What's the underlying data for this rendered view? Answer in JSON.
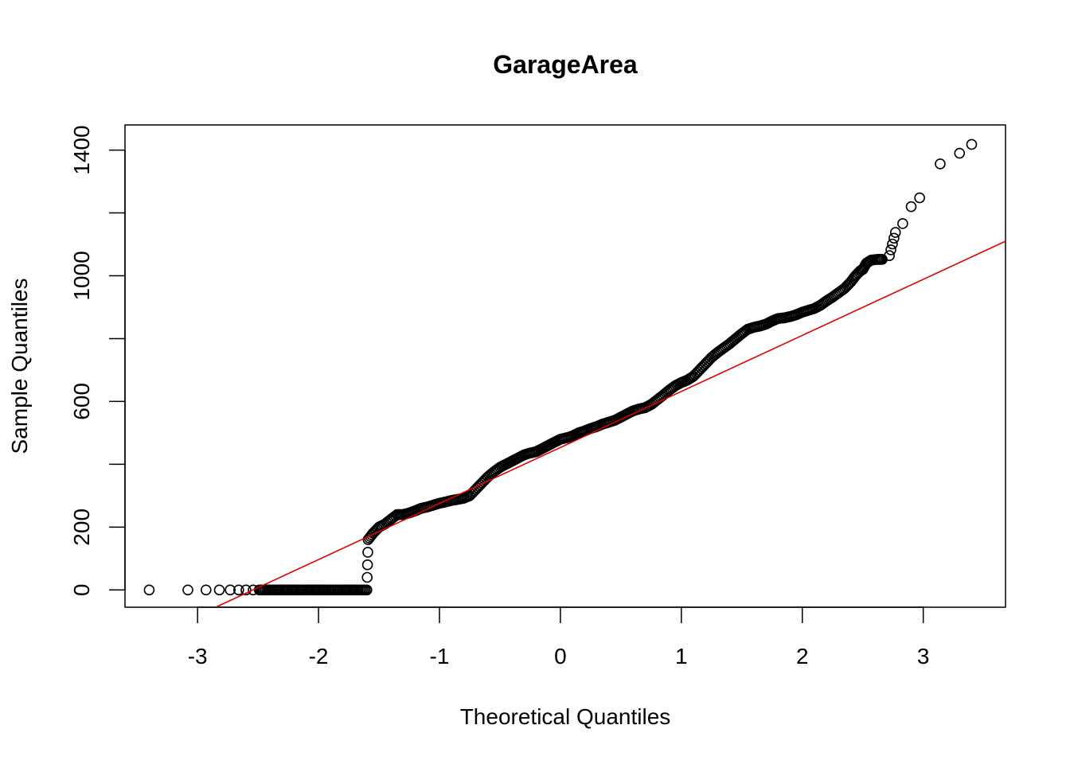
{
  "chart_data": {
    "type": "scatter",
    "title": "GarageArea",
    "xlabel": "Theoretical Quantiles",
    "ylabel": "Sample Quantiles",
    "xlim": [
      -3.6,
      3.68
    ],
    "ylim": [
      -55,
      1480
    ],
    "x_ticks": [
      -3,
      -2,
      -1,
      0,
      1,
      2,
      3
    ],
    "x_tick_labels": [
      "-3",
      "-2",
      "-1",
      "0",
      "1",
      "2",
      "3"
    ],
    "y_ticks": [
      0,
      200,
      400,
      600,
      800,
      1000,
      1200,
      1400
    ],
    "y_tick_labels": [
      "0",
      "200",
      "",
      "600",
      "",
      "1000",
      "",
      "1400"
    ],
    "grid": false,
    "point_style": "open-circle",
    "colors": {
      "points": "#000000",
      "line": "#e00000",
      "frame": "#000000"
    },
    "reference_line": {
      "x": [
        -2.85,
        3.68
      ],
      "y": [
        -55,
        1110
      ]
    },
    "series": [
      {
        "values": [
          {
            "x": -3.4,
            "y": 0
          },
          {
            "x": -3.08,
            "y": 0
          },
          {
            "x": -2.93,
            "y": 0
          },
          {
            "x": -2.82,
            "y": 0
          },
          {
            "x": -2.73,
            "y": 0
          },
          {
            "x": -2.66,
            "y": 0
          },
          {
            "x": -2.6,
            "y": 0
          },
          {
            "x": -2.54,
            "y": 0
          },
          {
            "x": -2.49,
            "y": 0
          },
          {
            "x": -2.45,
            "y": 0
          },
          {
            "x": -2.4,
            "y": 0
          },
          {
            "x": -2.35,
            "y": 0
          },
          {
            "x": -2.3,
            "y": 0
          },
          {
            "x": -2.25,
            "y": 0
          },
          {
            "x": -2.2,
            "y": 0
          },
          {
            "x": -2.15,
            "y": 0
          },
          {
            "x": -2.1,
            "y": 0
          },
          {
            "x": -2.05,
            "y": 0
          },
          {
            "x": -2.0,
            "y": 0
          },
          {
            "x": -1.95,
            "y": 0
          },
          {
            "x": -1.9,
            "y": 0
          },
          {
            "x": -1.85,
            "y": 0
          },
          {
            "x": -1.8,
            "y": 0
          },
          {
            "x": -1.75,
            "y": 0
          },
          {
            "x": -1.7,
            "y": 0
          },
          {
            "x": -1.65,
            "y": 0
          },
          {
            "x": -1.6,
            "y": 0
          },
          {
            "x": -1.59,
            "y": 160
          },
          {
            "x": -1.55,
            "y": 180
          },
          {
            "x": -1.5,
            "y": 200
          },
          {
            "x": -1.45,
            "y": 210
          },
          {
            "x": -1.4,
            "y": 225
          },
          {
            "x": -1.35,
            "y": 240
          },
          {
            "x": -1.3,
            "y": 240
          },
          {
            "x": -1.25,
            "y": 245
          },
          {
            "x": -1.2,
            "y": 252
          },
          {
            "x": -1.15,
            "y": 260
          },
          {
            "x": -1.1,
            "y": 264
          },
          {
            "x": -1.05,
            "y": 270
          },
          {
            "x": -1.0,
            "y": 276
          },
          {
            "x": -0.95,
            "y": 280
          },
          {
            "x": -0.9,
            "y": 285
          },
          {
            "x": -0.85,
            "y": 288
          },
          {
            "x": -0.8,
            "y": 292
          },
          {
            "x": -0.75,
            "y": 300
          },
          {
            "x": -0.7,
            "y": 320
          },
          {
            "x": -0.65,
            "y": 340
          },
          {
            "x": -0.6,
            "y": 360
          },
          {
            "x": -0.55,
            "y": 376
          },
          {
            "x": -0.5,
            "y": 390
          },
          {
            "x": -0.45,
            "y": 400
          },
          {
            "x": -0.4,
            "y": 410
          },
          {
            "x": -0.35,
            "y": 420
          },
          {
            "x": -0.3,
            "y": 430
          },
          {
            "x": -0.25,
            "y": 436
          },
          {
            "x": -0.2,
            "y": 440
          },
          {
            "x": -0.15,
            "y": 450
          },
          {
            "x": -0.1,
            "y": 460
          },
          {
            "x": -0.05,
            "y": 470
          },
          {
            "x": 0.0,
            "y": 480
          },
          {
            "x": 0.05,
            "y": 484
          },
          {
            "x": 0.1,
            "y": 490
          },
          {
            "x": 0.15,
            "y": 500
          },
          {
            "x": 0.2,
            "y": 506
          },
          {
            "x": 0.25,
            "y": 514
          },
          {
            "x": 0.3,
            "y": 520
          },
          {
            "x": 0.35,
            "y": 528
          },
          {
            "x": 0.4,
            "y": 534
          },
          {
            "x": 0.45,
            "y": 540
          },
          {
            "x": 0.5,
            "y": 550
          },
          {
            "x": 0.55,
            "y": 560
          },
          {
            "x": 0.6,
            "y": 570
          },
          {
            "x": 0.65,
            "y": 576
          },
          {
            "x": 0.7,
            "y": 580
          },
          {
            "x": 0.75,
            "y": 590
          },
          {
            "x": 0.8,
            "y": 605
          },
          {
            "x": 0.85,
            "y": 620
          },
          {
            "x": 0.9,
            "y": 636
          },
          {
            "x": 0.95,
            "y": 650
          },
          {
            "x": 1.0,
            "y": 660
          },
          {
            "x": 1.05,
            "y": 668
          },
          {
            "x": 1.1,
            "y": 680
          },
          {
            "x": 1.15,
            "y": 700
          },
          {
            "x": 1.2,
            "y": 720
          },
          {
            "x": 1.25,
            "y": 740
          },
          {
            "x": 1.3,
            "y": 756
          },
          {
            "x": 1.35,
            "y": 770
          },
          {
            "x": 1.4,
            "y": 784
          },
          {
            "x": 1.45,
            "y": 800
          },
          {
            "x": 1.5,
            "y": 816
          },
          {
            "x": 1.55,
            "y": 830
          },
          {
            "x": 1.6,
            "y": 836
          },
          {
            "x": 1.65,
            "y": 840
          },
          {
            "x": 1.7,
            "y": 846
          },
          {
            "x": 1.75,
            "y": 856
          },
          {
            "x": 1.8,
            "y": 864
          },
          {
            "x": 1.85,
            "y": 866
          },
          {
            "x": 1.9,
            "y": 870
          },
          {
            "x": 1.95,
            "y": 876
          },
          {
            "x": 2.0,
            "y": 884
          },
          {
            "x": 2.05,
            "y": 890
          },
          {
            "x": 2.1,
            "y": 896
          },
          {
            "x": 2.15,
            "y": 906
          },
          {
            "x": 2.2,
            "y": 920
          },
          {
            "x": 2.25,
            "y": 932
          },
          {
            "x": 2.3,
            "y": 946
          },
          {
            "x": 2.35,
            "y": 960
          },
          {
            "x": 2.4,
            "y": 980
          },
          {
            "x": 2.44,
            "y": 1000
          },
          {
            "x": 2.48,
            "y": 1016
          },
          {
            "x": 2.5,
            "y": 1020
          },
          {
            "x": 2.53,
            "y": 1040
          },
          {
            "x": 2.57,
            "y": 1050
          },
          {
            "x": 2.62,
            "y": 1052
          },
          {
            "x": 2.66,
            "y": 1052
          },
          {
            "x": 2.72,
            "y": 1064
          },
          {
            "x": 2.77,
            "y": 1138
          },
          {
            "x": 2.83,
            "y": 1166
          },
          {
            "x": 2.9,
            "y": 1220
          },
          {
            "x": 2.97,
            "y": 1248
          },
          {
            "x": 3.14,
            "y": 1356
          },
          {
            "x": 3.3,
            "y": 1390
          },
          {
            "x": 3.4,
            "y": 1418
          }
        ]
      }
    ]
  }
}
